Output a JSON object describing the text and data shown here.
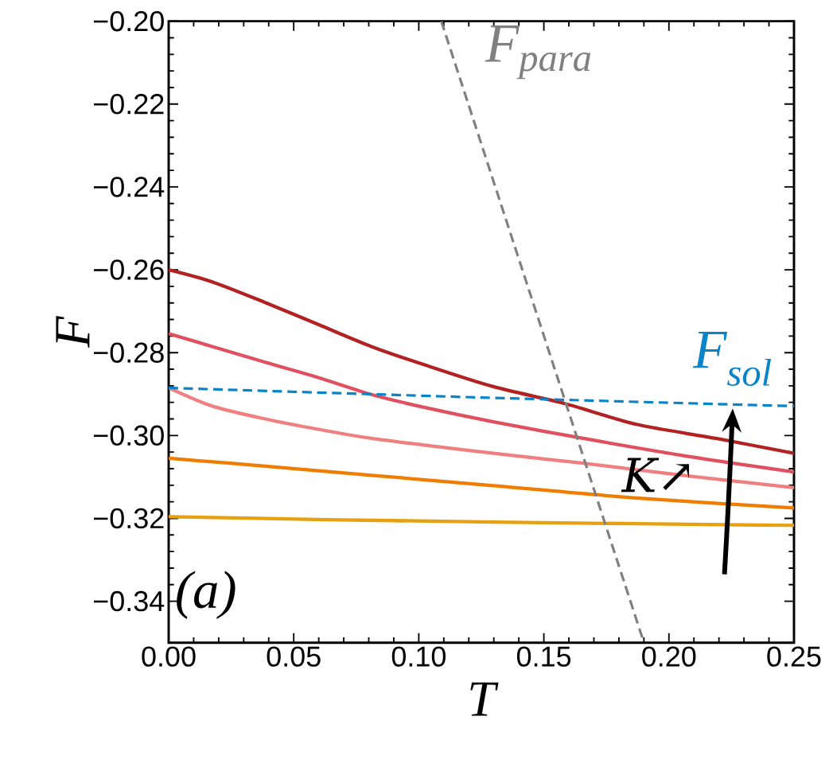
{
  "chart_data": {
    "type": "line",
    "xlabel": "T",
    "ylabel": "F",
    "x": [
      0,
      0.063,
      0.13,
      0.25
    ],
    "xlim": [
      0,
      0.25
    ],
    "ylim": [
      -0.35,
      -0.2
    ],
    "xticks": [
      {
        "value": 0,
        "label": "0.00"
      },
      {
        "value": 0.05,
        "label": "0.05"
      },
      {
        "value": 0.1,
        "label": "0.10"
      },
      {
        "value": 0.15,
        "label": "0.15"
      },
      {
        "value": 0.2,
        "label": "0.20"
      },
      {
        "value": 0.25,
        "label": "0.25"
      }
    ],
    "yticks": [
      {
        "value": -0.34,
        "label": "−0.34"
      },
      {
        "value": -0.32,
        "label": "−0.32"
      },
      {
        "value": -0.3,
        "label": "−0.30"
      },
      {
        "value": -0.28,
        "label": "−0.28"
      },
      {
        "value": -0.26,
        "label": "−0.26"
      },
      {
        "value": -0.24,
        "label": "−0.24"
      },
      {
        "value": -0.22,
        "label": "−0.22"
      },
      {
        "value": -0.2,
        "label": "−0.20"
      }
    ],
    "series": [
      {
        "color": "#b22222",
        "x": [
          0,
          0.0174,
          0.0386,
          0.0598,
          0.081,
          0.1021,
          0.1298,
          0.1584,
          0.187,
          0.2188,
          0.25
        ],
        "values": [
          -0.26,
          -0.2629,
          -0.2679,
          -0.2732,
          -0.2785,
          -0.2829,
          -0.2882,
          -0.2923,
          -0.2973,
          -0.3007,
          -0.3043
        ]
      },
      {
        "color": "#e0505f",
        "x": [
          0,
          0.0386,
          0.0598,
          0.081,
          0.1021,
          0.1298,
          0.1657,
          0.2083,
          0.25
        ],
        "values": [
          -0.2754,
          -0.2823,
          -0.286,
          -0.2901,
          -0.2932,
          -0.2967,
          -0.3007,
          -0.3051,
          -0.3088
        ]
      },
      {
        "color": "#f08080",
        "x": [
          0,
          0.0174,
          0.0386,
          0.0598,
          0.081,
          0.1021,
          0.1298,
          0.1657,
          0.2083,
          0.25
        ],
        "values": [
          -0.2885,
          -0.2929,
          -0.296,
          -0.2985,
          -0.3007,
          -0.3023,
          -0.3043,
          -0.3067,
          -0.3098,
          -0.3126
        ]
      },
      {
        "color": "#f07c00",
        "x": [
          0,
          0.0386,
          0.081,
          0.1298,
          0.187,
          0.25
        ],
        "values": [
          -0.3055,
          -0.3074,
          -0.3096,
          -0.3121,
          -0.3151,
          -0.3175
        ]
      },
      {
        "color": "#e6a010",
        "values": [
          -0.3196,
          -0.3203,
          -0.3209,
          -0.3217
        ]
      },
      {
        "name": "F$_{sol}$",
        "color": "#0a84c8",
        "line_style": "dashed",
        "x": [
          0,
          0.1234,
          0.25
        ],
        "values": [
          -0.2885,
          -0.2908,
          -0.2929
        ]
      },
      {
        "name": "F$_{para}$",
        "color": "#808080",
        "line_style": "dashed",
        "x": [
          0.109,
          0.19
        ],
        "values": [
          -0.2,
          -0.35
        ]
      }
    ],
    "annotations": [
      "K↗",
      "(a)"
    ]
  }
}
